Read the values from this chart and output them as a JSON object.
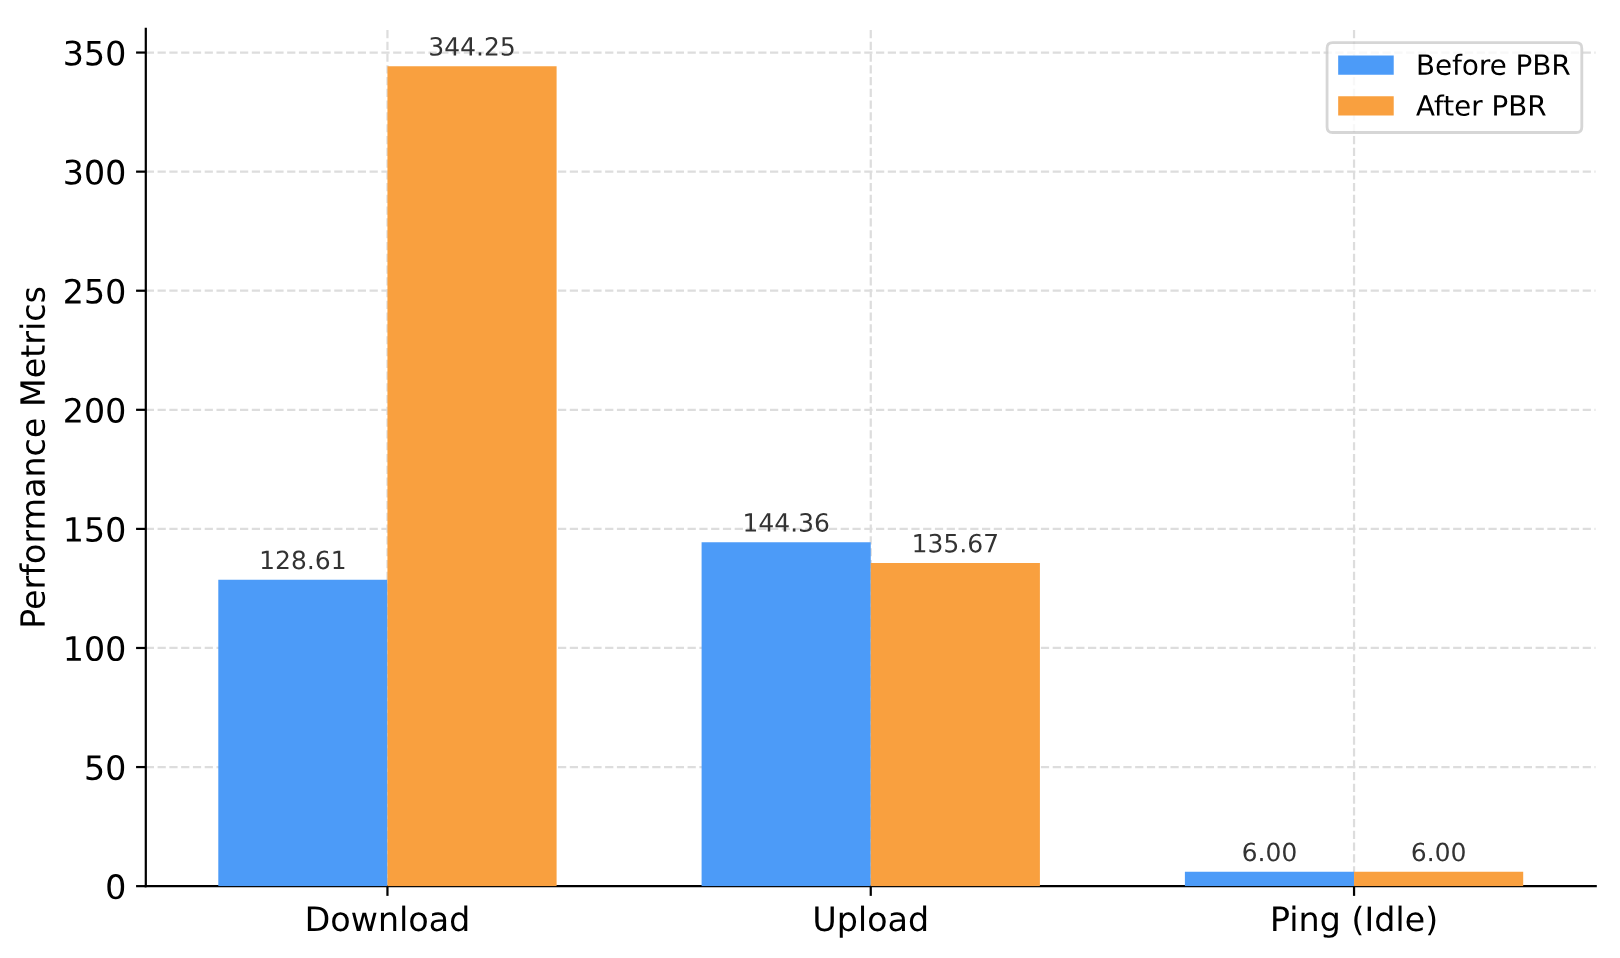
{
  "chart_data": {
    "type": "bar",
    "ylabel": "Performance Metrics",
    "categories": [
      "Download",
      "Upload",
      "Ping (Idle)"
    ],
    "series": [
      {
        "name": "Before PBR",
        "color": "#4c9bf8",
        "values": [
          128.61,
          144.36,
          6.0
        ],
        "value_labels": [
          "128.61",
          "144.36",
          "6.00"
        ]
      },
      {
        "name": "After PBR",
        "color": "#f9a03f",
        "values": [
          344.25,
          135.67,
          6.0
        ],
        "value_labels": [
          "344.25",
          "135.67",
          "6.00"
        ]
      }
    ],
    "ylim": [
      0,
      360
    ],
    "yticks": [
      0,
      50,
      100,
      150,
      200,
      250,
      300,
      350
    ],
    "grid": true,
    "legend": "top right"
  }
}
